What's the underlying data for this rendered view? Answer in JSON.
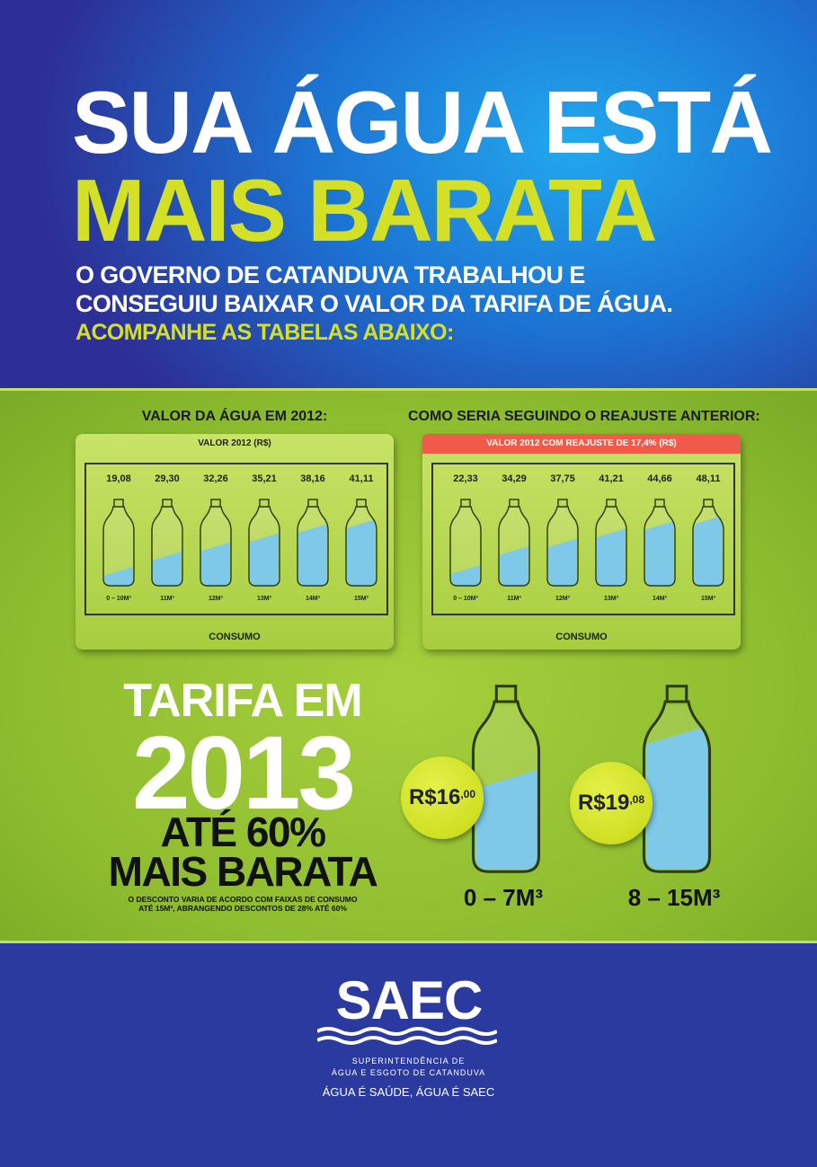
{
  "headline": {
    "line1": "SUA ÁGUA ESTÁ",
    "line2": "MAIS BARATA"
  },
  "intro": {
    "line1": "O GOVERNO DE CATANDUVA TRABALHOU E",
    "line2": "CONSEGUIU BAIXAR O VALOR DA TARIFA DE ÁGUA.",
    "line3": "ACOMPANHE AS TABELAS ABAIXO:"
  },
  "chart_data": [
    {
      "type": "bar",
      "title": "VALOR DA ÁGUA EM 2012:",
      "subtitle": "VALOR 2012 (R$)",
      "xlabel": "CONSUMO",
      "categories": [
        "0 – 10M³",
        "11M³",
        "12M³",
        "13M³",
        "14M³",
        "15M³"
      ],
      "values": [
        19.08,
        29.3,
        32.26,
        35.21,
        38.16,
        41.11
      ],
      "value_labels": [
        "19,08",
        "29,30",
        "32,26",
        "35,21",
        "38,16",
        "41,11"
      ],
      "fill_levels": [
        0.18,
        0.38,
        0.5,
        0.62,
        0.74,
        0.8
      ]
    },
    {
      "type": "bar",
      "title": "COMO SERIA SEGUINDO O REAJUSTE ANTERIOR:",
      "subtitle": "VALOR 2012 COM REAJUSTE DE 17,4% (R$)",
      "xlabel": "CONSUMO",
      "categories": [
        "0 – 10M³",
        "11M³",
        "12M³",
        "13M³",
        "14M³",
        "15M³"
      ],
      "values": [
        22.33,
        34.29,
        37.75,
        41.21,
        44.66,
        48.11
      ],
      "value_labels": [
        "22,33",
        "34,29",
        "37,75",
        "41,21",
        "44,66",
        "48,11"
      ],
      "fill_levels": [
        0.2,
        0.45,
        0.55,
        0.68,
        0.78,
        0.85
      ]
    }
  ],
  "tariff": {
    "line1": "TARIFA EM",
    "year": "2013",
    "line3": "ATÉ 60%",
    "line4": "MAIS BARATA",
    "note1": "O DESCONTO VARIA DE ACORDO COM FAIXAS DE CONSUMO",
    "note2": "ATÉ 15M³, ABRANGENDO DESCONTOS DE 28% ATÉ 60%"
  },
  "bottles": [
    {
      "price_main": "R$16",
      "price_cents": ",00",
      "range": "0 – 7M³",
      "fill_level": 0.55
    },
    {
      "price_main": "R$19",
      "price_cents": ",08",
      "range": "8 – 15M³",
      "fill_level": 0.82
    }
  ],
  "logo": {
    "name": "SAEC",
    "sub1": "SUPERINTENDÊNCIA DE",
    "sub2": "ÁGUA E ESGOTO DE CATANDUVA",
    "tagline": "ÁGUA É SAÚDE, ÁGUA É SAEC"
  },
  "colors": {
    "blue": "#1a6fd0",
    "green": "#8ebd2f",
    "lime": "#d4e025",
    "water": "#7ec9e8",
    "red": "#f05a4a"
  }
}
